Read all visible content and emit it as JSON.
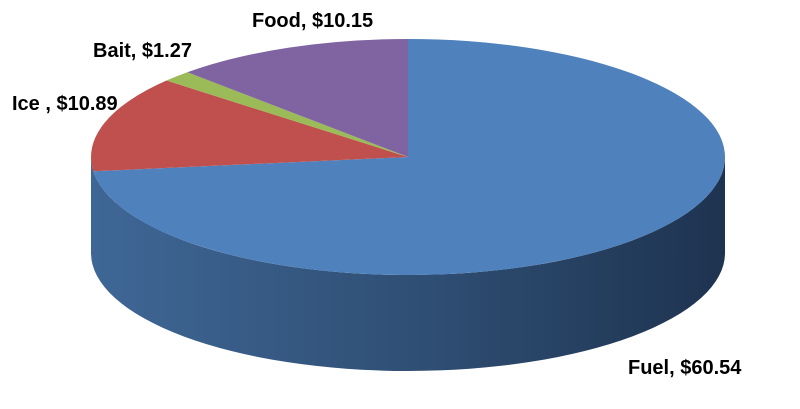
{
  "chart_data": {
    "type": "pie",
    "title": "",
    "style": "3d",
    "slices": [
      {
        "label": "Fuel",
        "value": 60.54,
        "display": "Fuel, $60.54",
        "color": "#4F81BD"
      },
      {
        "label": "Ice",
        "value": 10.89,
        "display": "Ice , $10.89",
        "color": "#C0504D"
      },
      {
        "label": "Bait",
        "value": 1.27,
        "display": "Bait, $1.27",
        "color": "#9BBB59"
      },
      {
        "label": "Food",
        "value": 10.15,
        "display": "Food, $10.15",
        "color": "#8064A2"
      }
    ]
  }
}
